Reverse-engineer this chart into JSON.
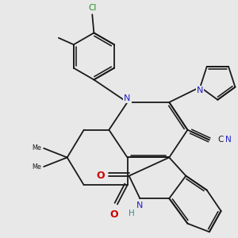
{
  "bg_color": "#e8e8e8",
  "bond_color": "#1a1a1a",
  "N_color": "#2020cc",
  "O_color": "#cc0000",
  "Cl_color": "#228B22",
  "H_color": "#2a9090",
  "C_color": "#1a1a1a",
  "lw": 1.3,
  "doff": 0.008,
  "xlim": [
    0.0,
    1.0
  ],
  "ylim": [
    0.0,
    1.0
  ]
}
